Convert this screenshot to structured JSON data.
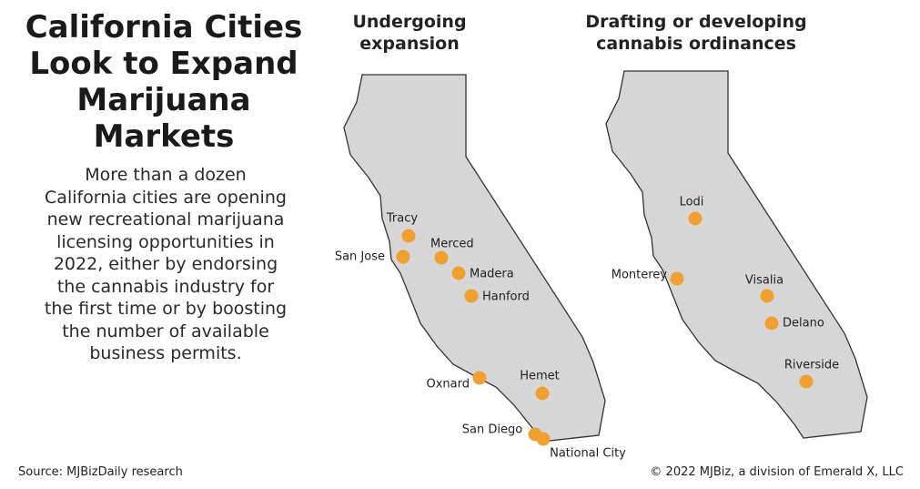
{
  "header": {
    "title": "California Cities Look to Expand Marijuana Markets",
    "description": "More than a dozen California cities are opening new recreational marijuana licensing opportunities in 2022, either by endorsing the cannabis industry for the first time or by boosting the number of available business permits."
  },
  "maps": [
    {
      "heading": "Undergoing expansion",
      "cities": [
        "Tracy",
        "San Jose",
        "Merced",
        "Madera",
        "Hanford",
        "Oxnard",
        "Hemet",
        "San Diego",
        "National City"
      ]
    },
    {
      "heading": "Drafting or developing cannabis ordinances",
      "cities": [
        "Lodi",
        "Monterey",
        "Visalia",
        "Delano",
        "Riverside"
      ]
    }
  ],
  "footer": {
    "source": "Source: MJBizDaily research",
    "copyright": "© 2022 MJBiz, a division of Emerald X, LLC"
  }
}
